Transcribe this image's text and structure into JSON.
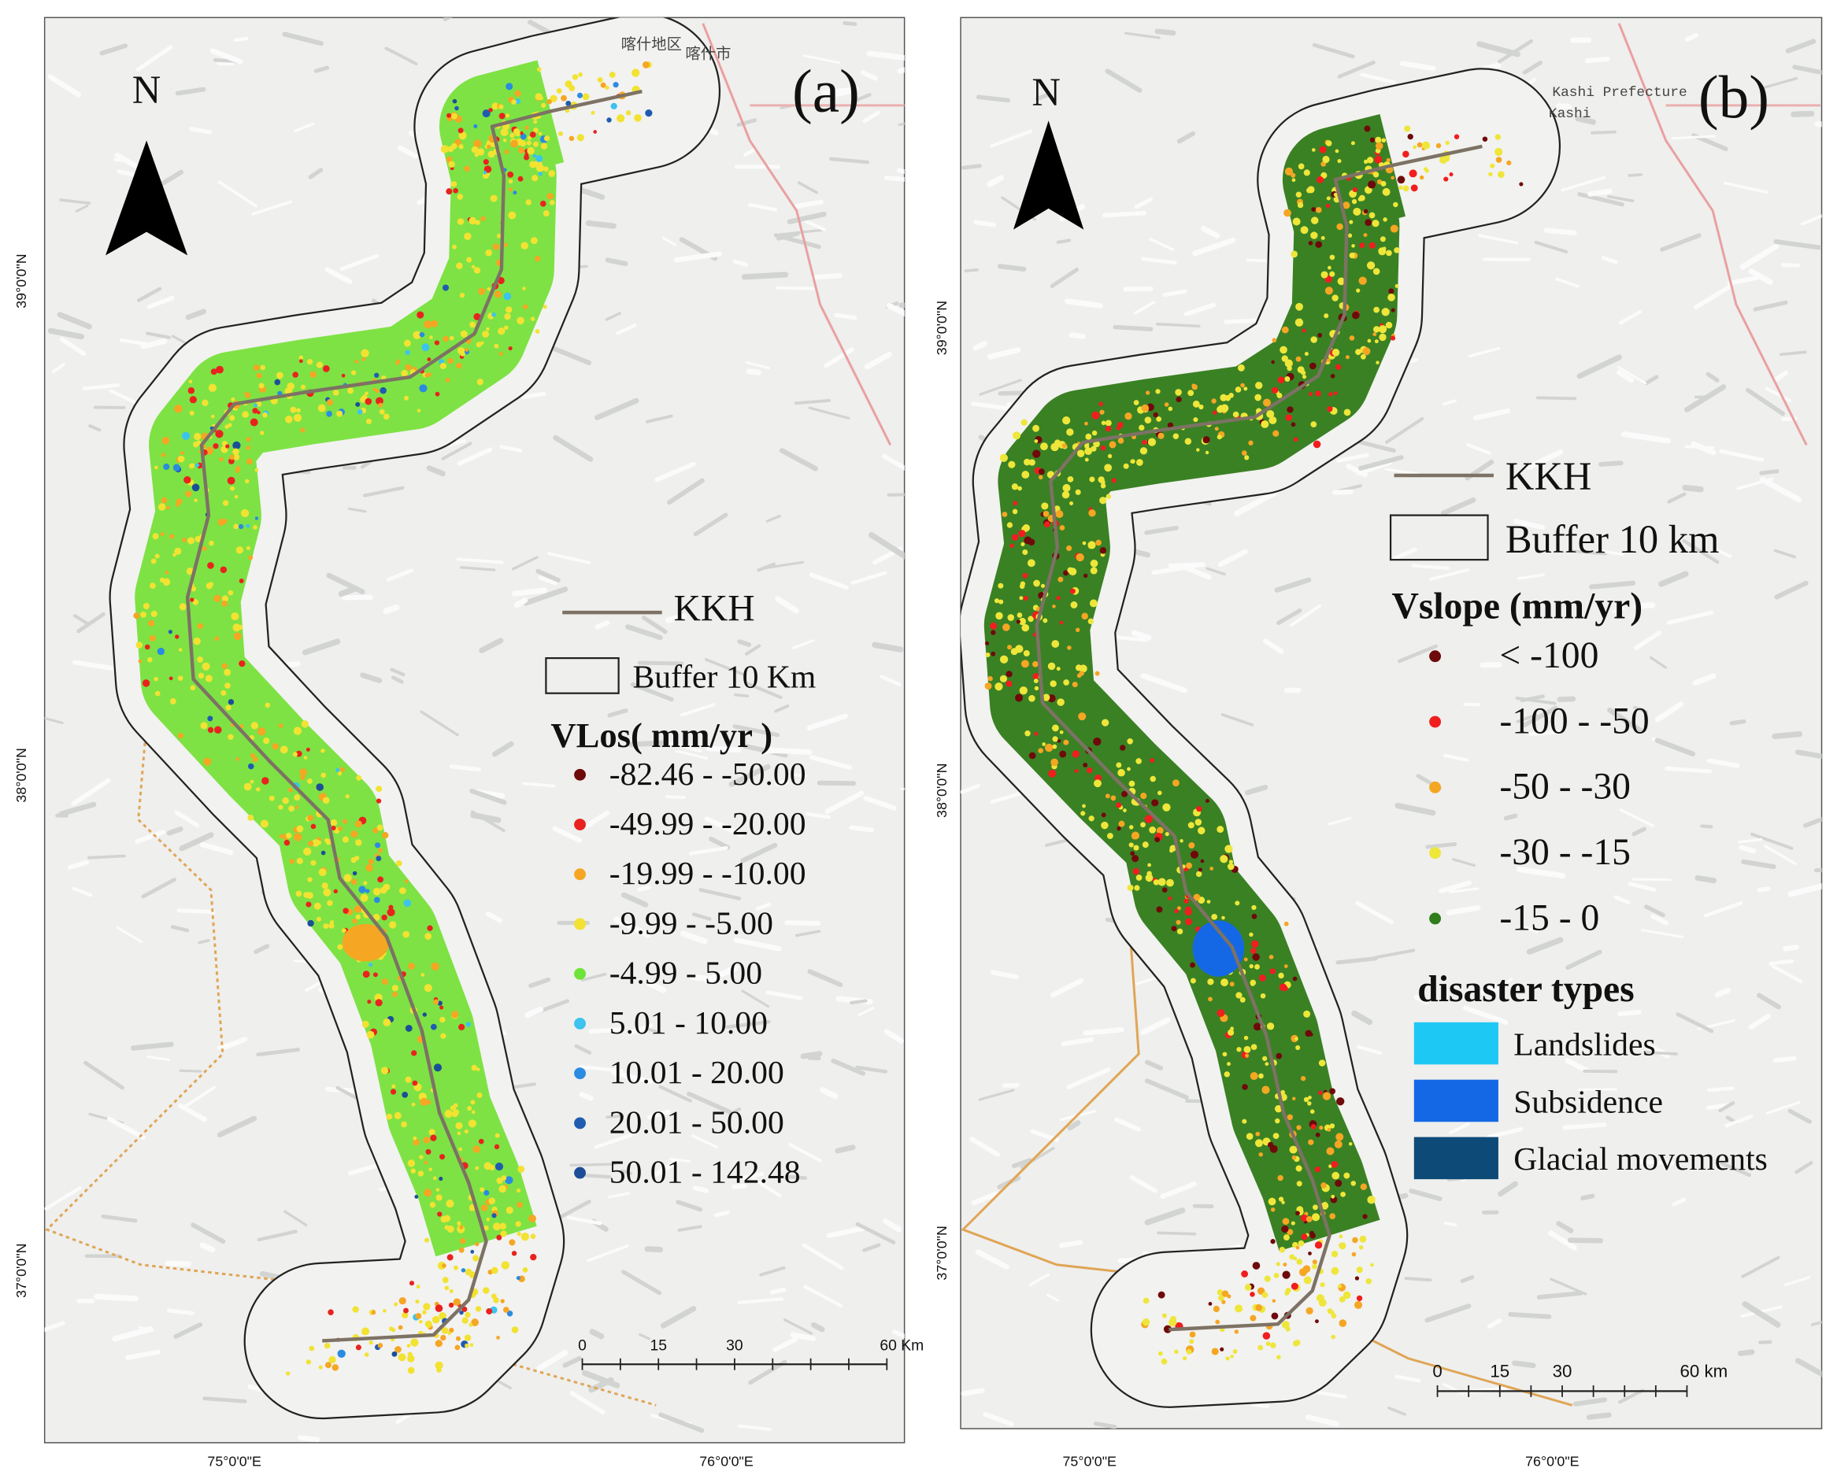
{
  "panels": [
    {
      "label": "(a)",
      "north": "N",
      "place_labels": [
        "喀什地区",
        "喀什市"
      ],
      "lat_labels": [
        "39°0'0\"N",
        "38°0'0\"N",
        "37°0'0\"N"
      ],
      "lon_labels": [
        "75°0'0\"E",
        "76°0'0\"E"
      ],
      "legend": {
        "road": "KKH",
        "buffer": "Buffer 10 Km",
        "title": "VLos( mm/yr )",
        "classes": [
          {
            "label": "-82.46 - -50.00",
            "color": "#6e0a0a"
          },
          {
            "label": "-49.99 - -20.00",
            "color": "#e8231e"
          },
          {
            "label": "-19.99 - -10.00",
            "color": "#f5a623"
          },
          {
            "label": "-9.99 - -5.00",
            "color": "#f2e232"
          },
          {
            "label": "-4.99 - 5.00",
            "color": "#6ee33a"
          },
          {
            "label": "5.01 - 10.00",
            "color": "#3cc3ee"
          },
          {
            "label": "10.01 - 20.00",
            "color": "#2a8be0"
          },
          {
            "label": "20.01 - 50.00",
            "color": "#1f5cb0"
          },
          {
            "label": "50.01 - 142.48",
            "color": "#1c4e98"
          }
        ],
        "swath_color": "#77e03a"
      },
      "scale_bar": [
        "0",
        "15",
        "30",
        "60 Km"
      ]
    },
    {
      "label": "(b)",
      "north": "N",
      "place_labels": [
        "Kashi Prefecture",
        "Kashi"
      ],
      "lat_labels": [
        "39°0'0\"N",
        "38°0'0\"N",
        "37°0'0\"N"
      ],
      "lon_labels": [
        "75°0'0\"E",
        "76°0'0\"E"
      ],
      "legend": {
        "road": "KKH",
        "buffer": "Buffer 10 km",
        "title": "Vslope (mm/yr)",
        "classes": [
          {
            "label": "< -100",
            "color": "#6e0a0a"
          },
          {
            "label": "-100 - -50",
            "color": "#f01e1e"
          },
          {
            "label": "-50 - -30",
            "color": "#f5a623"
          },
          {
            "label": "-30 - -15",
            "color": "#eee63a"
          },
          {
            "label": "-15 - 0",
            "color": "#2f7d1b"
          }
        ],
        "swath_color": "#2f7a18",
        "disaster_title": "disaster types",
        "disaster_types": [
          {
            "label": "Landslides",
            "color": "#1ec8f5"
          },
          {
            "label": "Subsidence",
            "color": "#1468e6"
          },
          {
            "label": "Glacial movements",
            "color": "#0e4a78"
          }
        ]
      },
      "scale_bar": [
        "0",
        "15",
        "30",
        "60 km"
      ]
    }
  ]
}
